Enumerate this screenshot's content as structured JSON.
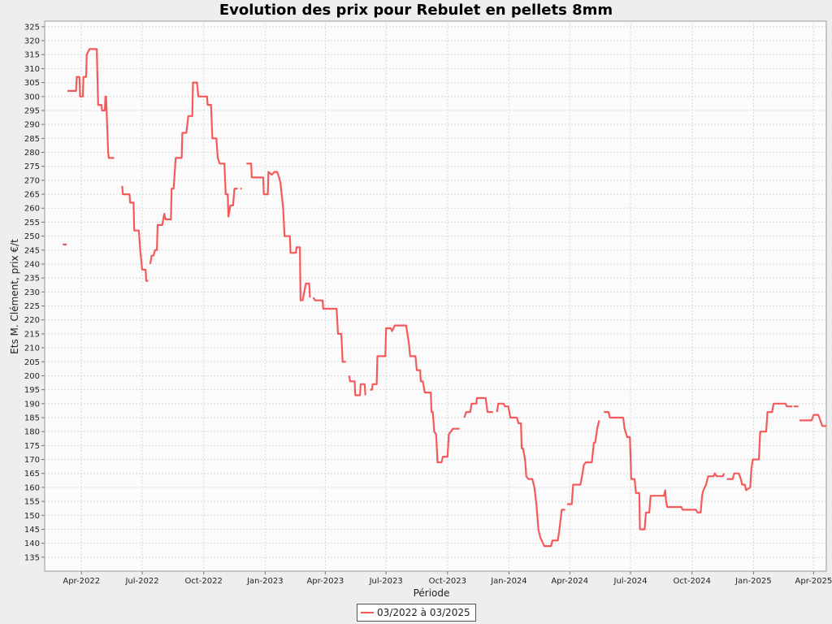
{
  "chart_data": {
    "type": "line",
    "title": "Evolution des prix pour Rebulet en pellets 8mm",
    "xlabel": "Période",
    "ylabel": "Ets M. Clément, prix €/t",
    "ylim": [
      130,
      327
    ],
    "yticks": [
      135,
      140,
      145,
      150,
      155,
      160,
      165,
      170,
      175,
      180,
      185,
      190,
      195,
      200,
      205,
      210,
      215,
      220,
      225,
      230,
      235,
      240,
      245,
      250,
      255,
      260,
      265,
      270,
      275,
      280,
      285,
      290,
      295,
      300,
      305,
      310,
      315,
      320,
      325
    ],
    "xlim": [
      "2022-02-05",
      "2025-04-20"
    ],
    "xticks": [
      {
        "date": "2022-04-01",
        "label": "Apr-2022"
      },
      {
        "date": "2022-07-01",
        "label": "Jul-2022"
      },
      {
        "date": "2022-10-01",
        "label": "Oct-2022"
      },
      {
        "date": "2023-01-01",
        "label": "Jan-2023"
      },
      {
        "date": "2023-04-01",
        "label": "Apr-2023"
      },
      {
        "date": "2023-07-01",
        "label": "Jul-2023"
      },
      {
        "date": "2023-10-01",
        "label": "Oct-2023"
      },
      {
        "date": "2024-01-01",
        "label": "Jan-2024"
      },
      {
        "date": "2024-04-01",
        "label": "Apr-2024"
      },
      {
        "date": "2024-07-01",
        "label": "Jul-2024"
      },
      {
        "date": "2024-10-01",
        "label": "Oct-2024"
      },
      {
        "date": "2025-01-01",
        "label": "Jan-2025"
      },
      {
        "date": "2025-04-01",
        "label": "Apr-2025"
      }
    ],
    "grid": true,
    "legend_position": "bottom",
    "series": [
      {
        "name": "03/2022 à 03/2025",
        "color": "#f55a5a",
        "points": [
          [
            "2022-03-04",
            247
          ],
          [
            "2022-03-10",
            247
          ],
          null,
          [
            "2022-03-11",
            302
          ],
          [
            "2022-03-24",
            302
          ],
          [
            "2022-03-25",
            307
          ],
          [
            "2022-03-29",
            307
          ],
          [
            "2022-03-30",
            300
          ],
          [
            "2022-04-03",
            300
          ],
          [
            "2022-04-04",
            307
          ],
          [
            "2022-04-08",
            307
          ],
          [
            "2022-04-09",
            315
          ],
          [
            "2022-04-13",
            317
          ],
          [
            "2022-04-24",
            317
          ],
          [
            "2022-04-26",
            297
          ],
          [
            "2022-05-01",
            297
          ],
          [
            "2022-05-02",
            295
          ],
          [
            "2022-05-06",
            295
          ],
          [
            "2022-05-07",
            300
          ],
          [
            "2022-05-08",
            300
          ],
          [
            "2022-05-11",
            280
          ],
          [
            "2022-05-12",
            278
          ],
          [
            "2022-05-20",
            278
          ],
          null,
          [
            "2022-06-01",
            268
          ],
          [
            "2022-06-02",
            265
          ],
          [
            "2022-06-12",
            265
          ],
          [
            "2022-06-13",
            262
          ],
          [
            "2022-06-18",
            262
          ],
          [
            "2022-06-19",
            252
          ],
          [
            "2022-06-26",
            252
          ],
          [
            "2022-06-28",
            245
          ],
          [
            "2022-07-01",
            238
          ],
          [
            "2022-07-06",
            238
          ],
          [
            "2022-07-07",
            234
          ],
          [
            "2022-07-10",
            234
          ],
          null,
          [
            "2022-07-13",
            240
          ],
          [
            "2022-07-15",
            243
          ],
          [
            "2022-07-18",
            243
          ],
          [
            "2022-07-20",
            245
          ],
          [
            "2022-07-23",
            245
          ],
          [
            "2022-07-24",
            254
          ],
          [
            "2022-07-31",
            254
          ],
          [
            "2022-08-03",
            258
          ],
          [
            "2022-08-05",
            256
          ],
          [
            "2022-08-13",
            256
          ],
          [
            "2022-08-14",
            267
          ],
          [
            "2022-08-17",
            267
          ],
          [
            "2022-08-20",
            278
          ],
          [
            "2022-08-29",
            278
          ],
          [
            "2022-08-30",
            287
          ],
          [
            "2022-09-05",
            287
          ],
          [
            "2022-09-08",
            293
          ],
          [
            "2022-09-14",
            293
          ],
          [
            "2022-09-15",
            305
          ],
          [
            "2022-09-21",
            305
          ],
          [
            "2022-09-23",
            300
          ],
          [
            "2022-10-06",
            300
          ],
          [
            "2022-10-07",
            297
          ],
          [
            "2022-10-12",
            297
          ],
          [
            "2022-10-14",
            285
          ],
          [
            "2022-10-20",
            285
          ],
          [
            "2022-10-22",
            278
          ],
          [
            "2022-10-25",
            276
          ],
          [
            "2022-11-01",
            276
          ],
          [
            "2022-11-03",
            265
          ],
          [
            "2022-11-06",
            265
          ],
          [
            "2022-11-07",
            257
          ],
          [
            "2022-11-10",
            261
          ],
          [
            "2022-11-14",
            261
          ],
          [
            "2022-11-16",
            267
          ],
          [
            "2022-11-21",
            267
          ],
          null,
          [
            "2022-11-25",
            267
          ],
          [
            "2022-11-27",
            267
          ],
          null,
          [
            "2022-12-04",
            276
          ],
          [
            "2022-12-11",
            276
          ],
          [
            "2022-12-12",
            271
          ],
          [
            "2022-12-29",
            271
          ],
          [
            "2022-12-30",
            265
          ],
          [
            "2023-01-05",
            265
          ],
          [
            "2023-01-06",
            273
          ],
          [
            "2023-01-11",
            272
          ],
          [
            "2023-01-15",
            273
          ],
          [
            "2023-01-19",
            273
          ],
          [
            "2023-01-22",
            271
          ],
          [
            "2023-01-24",
            269
          ],
          [
            "2023-01-28",
            260
          ],
          [
            "2023-01-30",
            250
          ],
          [
            "2023-02-07",
            250
          ],
          [
            "2023-02-08",
            244
          ],
          [
            "2023-02-16",
            244
          ],
          [
            "2023-02-17",
            246
          ],
          [
            "2023-02-22",
            246
          ],
          [
            "2023-02-23",
            227
          ],
          [
            "2023-02-26",
            227
          ],
          [
            "2023-03-03",
            233
          ],
          [
            "2023-03-08",
            233
          ],
          [
            "2023-03-09",
            228
          ],
          null,
          [
            "2023-03-14",
            228
          ],
          [
            "2023-03-17",
            227
          ],
          [
            "2023-03-28",
            227
          ],
          [
            "2023-03-29",
            224
          ],
          [
            "2023-04-18",
            224
          ],
          [
            "2023-04-20",
            215
          ],
          [
            "2023-04-25",
            215
          ],
          [
            "2023-04-27",
            205
          ],
          [
            "2023-05-02",
            205
          ],
          null,
          [
            "2023-05-07",
            200
          ],
          [
            "2023-05-08",
            198
          ],
          [
            "2023-05-15",
            198
          ],
          [
            "2023-05-16",
            193
          ],
          [
            "2023-05-23",
            193
          ],
          [
            "2023-05-24",
            197
          ],
          [
            "2023-05-30",
            197
          ],
          [
            "2023-05-31",
            193
          ],
          null,
          [
            "2023-06-07",
            195
          ],
          [
            "2023-06-10",
            195
          ],
          [
            "2023-06-11",
            197
          ],
          [
            "2023-06-17",
            197
          ],
          [
            "2023-06-18",
            207
          ],
          [
            "2023-06-30",
            207
          ],
          [
            "2023-07-01",
            217
          ],
          [
            "2023-07-08",
            217
          ],
          [
            "2023-07-10",
            216
          ],
          [
            "2023-07-14",
            218
          ],
          [
            "2023-07-31",
            218
          ],
          [
            "2023-08-04",
            212
          ],
          [
            "2023-08-06",
            207
          ],
          [
            "2023-08-14",
            207
          ],
          [
            "2023-08-16",
            202
          ],
          [
            "2023-08-21",
            202
          ],
          [
            "2023-08-22",
            198
          ],
          [
            "2023-08-25",
            198
          ],
          [
            "2023-08-28",
            194
          ],
          [
            "2023-09-06",
            194
          ],
          [
            "2023-09-07",
            187
          ],
          [
            "2023-09-09",
            187
          ],
          [
            "2023-09-11",
            180
          ],
          [
            "2023-09-14",
            179
          ],
          [
            "2023-09-16",
            169
          ],
          [
            "2023-09-22",
            169
          ],
          [
            "2023-09-24",
            171
          ],
          [
            "2023-10-01",
            171
          ],
          [
            "2023-10-03",
            179
          ],
          [
            "2023-10-06",
            180
          ],
          [
            "2023-10-09",
            181
          ],
          [
            "2023-10-19",
            181
          ],
          null,
          [
            "2023-10-26",
            185
          ],
          [
            "2023-10-29",
            187
          ],
          [
            "2023-11-04",
            187
          ],
          [
            "2023-11-06",
            190
          ],
          [
            "2023-11-13",
            190
          ],
          [
            "2023-11-14",
            192
          ],
          [
            "2023-11-27",
            192
          ],
          [
            "2023-11-30",
            187
          ],
          [
            "2023-12-08",
            187
          ],
          null,
          [
            "2023-12-14",
            187
          ],
          [
            "2023-12-16",
            190
          ],
          [
            "2023-12-24",
            190
          ],
          [
            "2023-12-26",
            189
          ],
          [
            "2023-12-31",
            189
          ],
          [
            "2024-01-03",
            185
          ],
          [
            "2024-01-13",
            185
          ],
          [
            "2024-01-15",
            183
          ],
          [
            "2024-01-19",
            183
          ],
          [
            "2024-01-20",
            174
          ],
          [
            "2024-01-22",
            174
          ],
          [
            "2024-01-25",
            170
          ],
          [
            "2024-01-27",
            164
          ],
          [
            "2024-01-30",
            163
          ],
          [
            "2024-02-05",
            163
          ],
          [
            "2024-02-08",
            160
          ],
          [
            "2024-02-11",
            154
          ],
          [
            "2024-02-14",
            145
          ],
          [
            "2024-02-17",
            142
          ],
          [
            "2024-02-23",
            139
          ],
          [
            "2024-03-04",
            139
          ],
          [
            "2024-03-06",
            141
          ],
          [
            "2024-03-14",
            141
          ],
          [
            "2024-03-16",
            144
          ],
          [
            "2024-03-20",
            152
          ],
          [
            "2024-03-25",
            152
          ],
          null,
          [
            "2024-03-28",
            154
          ],
          [
            "2024-04-04",
            154
          ],
          [
            "2024-04-06",
            161
          ],
          [
            "2024-04-17",
            161
          ],
          [
            "2024-04-20",
            165
          ],
          [
            "2024-04-22",
            168
          ],
          [
            "2024-04-25",
            169
          ],
          [
            "2024-05-04",
            169
          ],
          [
            "2024-05-07",
            176
          ],
          [
            "2024-05-09",
            176
          ],
          [
            "2024-05-12",
            181
          ],
          [
            "2024-05-15",
            184
          ],
          null,
          [
            "2024-05-22",
            187
          ],
          [
            "2024-05-29",
            187
          ],
          [
            "2024-05-31",
            185
          ],
          [
            "2024-06-20",
            185
          ],
          [
            "2024-06-22",
            181
          ],
          [
            "2024-06-26",
            178
          ],
          [
            "2024-06-30",
            178
          ],
          [
            "2024-07-02",
            163
          ],
          [
            "2024-07-07",
            163
          ],
          [
            "2024-07-09",
            158
          ],
          [
            "2024-07-14",
            158
          ],
          [
            "2024-07-15",
            145
          ],
          [
            "2024-07-22",
            145
          ],
          [
            "2024-07-24",
            151
          ],
          [
            "2024-07-29",
            151
          ],
          [
            "2024-07-31",
            157
          ],
          [
            "2024-08-20",
            157
          ],
          [
            "2024-08-22",
            159
          ],
          [
            "2024-08-23",
            155
          ],
          [
            "2024-08-25",
            153
          ],
          [
            "2024-09-15",
            153
          ],
          [
            "2024-09-17",
            152
          ],
          [
            "2024-10-07",
            152
          ],
          [
            "2024-10-09",
            151
          ],
          [
            "2024-10-14",
            151
          ],
          [
            "2024-10-16",
            157
          ],
          [
            "2024-10-18",
            159
          ],
          [
            "2024-10-22",
            161
          ],
          [
            "2024-10-25",
            164
          ],
          [
            "2024-11-02",
            164
          ],
          [
            "2024-11-04",
            165
          ],
          [
            "2024-11-07",
            164
          ],
          [
            "2024-11-16",
            164
          ],
          [
            "2024-11-18",
            165
          ],
          null,
          [
            "2024-11-22",
            163
          ],
          [
            "2024-12-01",
            163
          ],
          [
            "2024-12-03",
            165
          ],
          [
            "2024-12-10",
            165
          ],
          [
            "2024-12-13",
            163
          ],
          [
            "2024-12-15",
            161
          ],
          [
            "2024-12-19",
            161
          ],
          [
            "2024-12-21",
            159
          ],
          [
            "2024-12-27",
            160
          ],
          [
            "2024-12-29",
            167
          ],
          [
            "2024-12-31",
            170
          ],
          [
            "2025-01-09",
            170
          ],
          [
            "2025-01-11",
            180
          ],
          [
            "2025-01-20",
            180
          ],
          [
            "2025-01-22",
            187
          ],
          [
            "2025-01-29",
            187
          ],
          [
            "2025-01-31",
            190
          ],
          [
            "2025-02-18",
            190
          ],
          [
            "2025-02-20",
            189
          ],
          [
            "2025-02-28",
            189
          ],
          null,
          [
            "2025-03-02",
            189
          ],
          [
            "2025-03-09",
            189
          ],
          null,
          [
            "2025-03-11",
            184
          ],
          [
            "2025-03-29",
            184
          ],
          [
            "2025-04-01",
            186
          ],
          [
            "2025-04-08",
            186
          ],
          [
            "2025-04-11",
            184
          ],
          [
            "2025-04-14",
            182
          ],
          [
            "2025-04-20",
            182
          ]
        ]
      }
    ]
  }
}
